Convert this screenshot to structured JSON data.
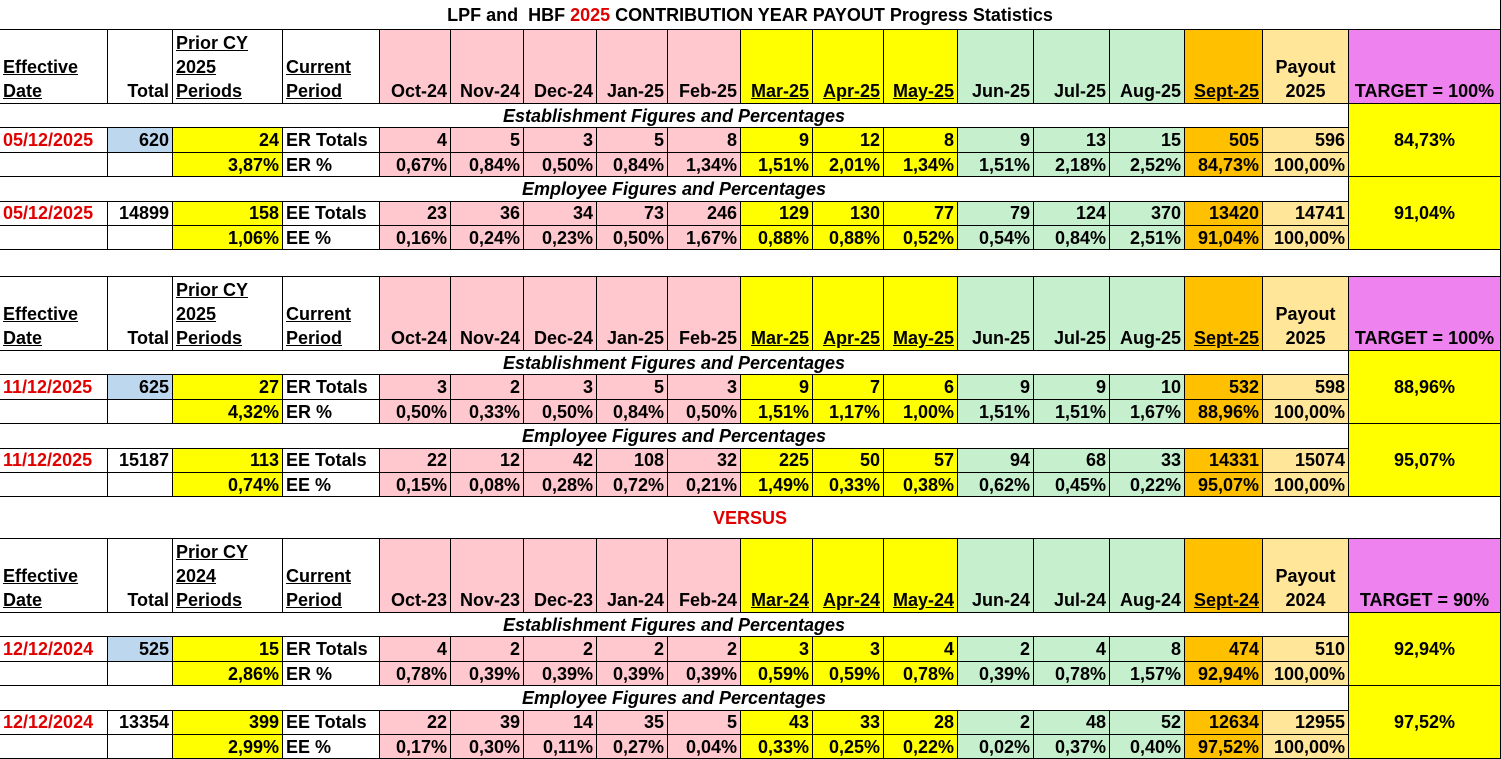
{
  "title": {
    "prefix": "LPF and  HBF ",
    "year": "2025",
    "suffix": " CONTRIBUTION YEAR PAYOUT Progress Statistics"
  },
  "versus": "VERSUS",
  "blocks": [
    {
      "header": {
        "effective": [
          "Effective",
          "Date"
        ],
        "total": "Total",
        "prior": [
          "Prior CY",
          "2025",
          "Periods"
        ],
        "current": [
          "Current",
          "Period"
        ],
        "months": [
          "Oct-24",
          "Nov-24",
          "Dec-24",
          "Jan-25",
          "Feb-25",
          "Mar-25",
          "Apr-25",
          "May-25",
          "Jun-25",
          "Jul-25",
          "Aug-25",
          "Sept-25"
        ],
        "payout": [
          "Payout",
          "2025"
        ],
        "target": "TARGET = 100%"
      },
      "er": {
        "label": "Establishment Figures and Percentages",
        "target": "84,73%",
        "totals": {
          "date": "05/12/2025",
          "total": 620,
          "prior": 24,
          "label": "ER Totals",
          "values": [
            4,
            5,
            3,
            5,
            8,
            9,
            12,
            8,
            9,
            13,
            15,
            505,
            596
          ]
        },
        "percent": {
          "prior": "3,87%",
          "label": "ER %",
          "values": [
            "0,67%",
            "0,84%",
            "0,50%",
            "0,84%",
            "1,34%",
            "1,51%",
            "2,01%",
            "1,34%",
            "1,51%",
            "2,18%",
            "2,52%",
            "84,73%",
            "100,00%"
          ]
        }
      },
      "ee": {
        "label": "Employee Figures and Percentages",
        "target": "91,04%",
        "totals": {
          "date": "05/12/2025",
          "total": 14899,
          "prior": 158,
          "label": "EE Totals",
          "values": [
            23,
            36,
            34,
            73,
            246,
            129,
            130,
            77,
            79,
            124,
            370,
            13420,
            14741
          ]
        },
        "percent": {
          "prior": "1,06%",
          "label": "EE %",
          "values": [
            "0,16%",
            "0,24%",
            "0,23%",
            "0,50%",
            "1,67%",
            "0,88%",
            "0,88%",
            "0,52%",
            "0,54%",
            "0,84%",
            "2,51%",
            "91,04%",
            "100,00%"
          ]
        }
      }
    },
    {
      "header": {
        "effective": [
          "Effective",
          "Date"
        ],
        "total": "Total",
        "prior": [
          "Prior CY",
          "2025",
          "Periods"
        ],
        "current": [
          "Current",
          "Period"
        ],
        "months": [
          "Oct-24",
          "Nov-24",
          "Dec-24",
          "Jan-25",
          "Feb-25",
          "Mar-25",
          "Apr-25",
          "May-25",
          "Jun-25",
          "Jul-25",
          "Aug-25",
          "Sept-25"
        ],
        "payout": [
          "Payout",
          "2025"
        ],
        "target": "TARGET = 100%"
      },
      "er": {
        "label": "Establishment Figures and Percentages",
        "target": "88,96%",
        "totals": {
          "date": "11/12/2025",
          "total": 625,
          "prior": 27,
          "label": "ER Totals",
          "values": [
            3,
            2,
            3,
            5,
            3,
            9,
            7,
            6,
            9,
            9,
            10,
            532,
            598
          ]
        },
        "percent": {
          "prior": "4,32%",
          "label": "ER %",
          "values": [
            "0,50%",
            "0,33%",
            "0,50%",
            "0,84%",
            "0,50%",
            "1,51%",
            "1,17%",
            "1,00%",
            "1,51%",
            "1,51%",
            "1,67%",
            "88,96%",
            "100,00%"
          ]
        }
      },
      "ee": {
        "label": "Employee Figures and Percentages",
        "target": "95,07%",
        "totals": {
          "date": "11/12/2025",
          "total": 15187,
          "prior": 113,
          "label": "EE Totals",
          "values": [
            22,
            12,
            42,
            108,
            32,
            225,
            50,
            57,
            94,
            68,
            33,
            14331,
            15074
          ]
        },
        "percent": {
          "prior": "0,74%",
          "label": "EE %",
          "values": [
            "0,15%",
            "0,08%",
            "0,28%",
            "0,72%",
            "0,21%",
            "1,49%",
            "0,33%",
            "0,38%",
            "0,62%",
            "0,45%",
            "0,22%",
            "95,07%",
            "100,00%"
          ]
        }
      }
    },
    {
      "header": {
        "effective": [
          "Effective",
          "Date"
        ],
        "total": "Total",
        "prior": [
          "Prior CY",
          "2024",
          "Periods"
        ],
        "current": [
          "Current",
          "Period"
        ],
        "months": [
          "Oct-23",
          "Nov-23",
          "Dec-23",
          "Jan-24",
          "Feb-24",
          "Mar-24",
          "Apr-24",
          "May-24",
          "Jun-24",
          "Jul-24",
          "Aug-24",
          "Sept-24"
        ],
        "payout": [
          "Payout",
          "2024"
        ],
        "target": "TARGET = 90%"
      },
      "er": {
        "label": "Establishment Figures and Percentages",
        "target": "92,94%",
        "totals": {
          "date": "12/12/2024",
          "total": 525,
          "prior": 15,
          "label": "ER Totals",
          "values": [
            4,
            2,
            2,
            2,
            2,
            3,
            3,
            4,
            2,
            4,
            8,
            474,
            510
          ]
        },
        "percent": {
          "prior": "2,86%",
          "label": "ER %",
          "values": [
            "0,78%",
            "0,39%",
            "0,39%",
            "0,39%",
            "0,39%",
            "0,59%",
            "0,59%",
            "0,78%",
            "0,39%",
            "0,78%",
            "1,57%",
            "92,94%",
            "100,00%"
          ]
        }
      },
      "ee": {
        "label": "Employee Figures and Percentages",
        "target": "97,52%",
        "totals": {
          "date": "12/12/2024",
          "total": 13354,
          "prior": 399,
          "label": "EE Totals",
          "values": [
            22,
            39,
            14,
            35,
            5,
            43,
            33,
            28,
            2,
            48,
            52,
            12634,
            12955
          ]
        },
        "percent": {
          "prior": "2,99%",
          "label": "EE %",
          "values": [
            "0,17%",
            "0,30%",
            "0,11%",
            "0,27%",
            "0,04%",
            "0,33%",
            "0,25%",
            "0,22%",
            "0,02%",
            "0,37%",
            "0,40%",
            "97,52%",
            "100,00%"
          ]
        }
      }
    }
  ]
}
